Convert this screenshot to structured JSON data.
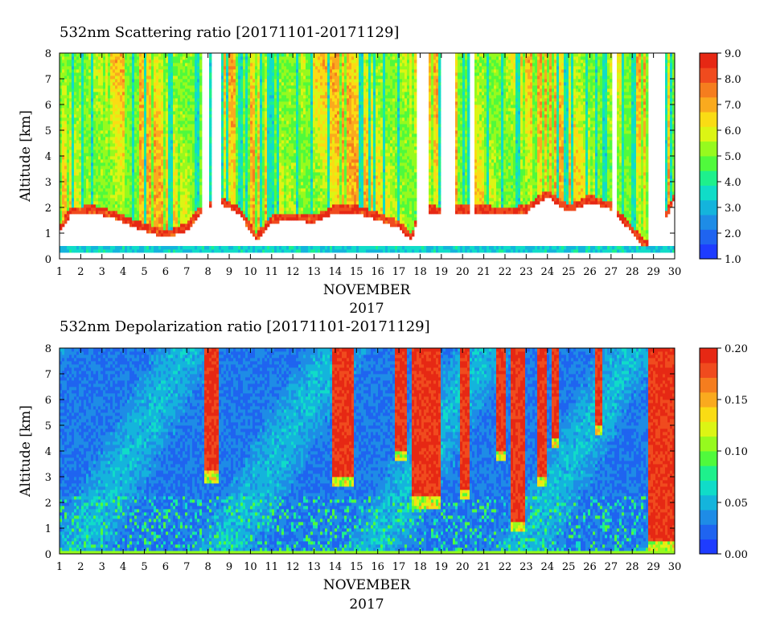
{
  "colors": {
    "palette": [
      "#1e3cff",
      "#1f64f0",
      "#1e8ce6",
      "#14b4dc",
      "#10dcc8",
      "#1ef08c",
      "#50fa3c",
      "#96fa1e",
      "#dcf514",
      "#fadc14",
      "#faaa1e",
      "#f57d1e",
      "#f04b1e",
      "#e62814"
    ],
    "empty": "#ffffff"
  },
  "chart_data": [
    {
      "type": "heatmap",
      "title": "532nm Scattering ratio [20171101-20171129]",
      "xlabel": "NOVEMBER",
      "xlabel2": "2017",
      "ylabel": "Altitude [km]",
      "xlim": [
        1,
        30
      ],
      "ylim": [
        0,
        8
      ],
      "x_ticks": [
        "1",
        "2",
        "3",
        "4",
        "5",
        "6",
        "7",
        "8",
        "9",
        "10",
        "11",
        "12",
        "13",
        "14",
        "15",
        "16",
        "17",
        "18",
        "19",
        "20",
        "21",
        "22",
        "23",
        "24",
        "25",
        "26",
        "27",
        "28",
        "29",
        "30"
      ],
      "y_ticks": [
        "0",
        "1",
        "2",
        "3",
        "4",
        "5",
        "6",
        "7",
        "8"
      ],
      "colorbar": {
        "min": 1.0,
        "max": 9.0,
        "ticks": [
          "1.0",
          "2.0",
          "3.0",
          "4.0",
          "5.0",
          "6.0",
          "7.0",
          "8.0",
          "9.0"
        ]
      },
      "cloud_base_km": [
        {
          "day": 1.0,
          "base": 1.0
        },
        {
          "day": 1.5,
          "base": 1.7
        },
        {
          "day": 2.5,
          "base": 1.8
        },
        {
          "day": 3.5,
          "base": 1.6
        },
        {
          "day": 4.3,
          "base": 1.3
        },
        {
          "day": 5.0,
          "base": 1.1
        },
        {
          "day": 6.0,
          "base": 0.8
        },
        {
          "day": 7.0,
          "base": 1.1
        },
        {
          "day": 7.7,
          "base": 1.8
        },
        {
          "day": 8.5,
          "base": 2.2
        },
        {
          "day": 9.5,
          "base": 1.7
        },
        {
          "day": 10.3,
          "base": 0.7
        },
        {
          "day": 11.0,
          "base": 1.4
        },
        {
          "day": 12.0,
          "base": 1.5
        },
        {
          "day": 13.0,
          "base": 1.4
        },
        {
          "day": 14.0,
          "base": 1.8
        },
        {
          "day": 15.0,
          "base": 1.8
        },
        {
          "day": 16.0,
          "base": 1.5
        },
        {
          "day": 17.0,
          "base": 1.2
        },
        {
          "day": 17.6,
          "base": 0.7
        },
        {
          "day": 18.0,
          "base": 1.9
        },
        {
          "day": 19.0,
          "base": 1.7
        },
        {
          "day": 20.0,
          "base": 1.8
        },
        {
          "day": 21.0,
          "base": 1.8
        },
        {
          "day": 22.0,
          "base": 1.7
        },
        {
          "day": 23.0,
          "base": 1.8
        },
        {
          "day": 24.0,
          "base": 2.4
        },
        {
          "day": 25.0,
          "base": 1.8
        },
        {
          "day": 26.0,
          "base": 2.2
        },
        {
          "day": 27.0,
          "base": 1.9
        },
        {
          "day": 28.0,
          "base": 1.0
        },
        {
          "day": 28.6,
          "base": 0.4
        },
        {
          "day": 29.2,
          "base": 0.9
        },
        {
          "day": 30.0,
          "base": 2.3
        }
      ],
      "clear_gaps_days": [
        [
          7.75,
          8.0
        ],
        [
          8.15,
          8.6
        ],
        [
          17.85,
          18.45
        ],
        [
          19.0,
          19.7
        ],
        [
          20.3,
          20.55
        ],
        [
          27.1,
          27.3
        ],
        [
          28.7,
          29.6
        ]
      ],
      "surface_layer_km": [
        0.25,
        0.45
      ]
    },
    {
      "type": "heatmap",
      "title": "532nm Depolarization ratio [20171101-20171129]",
      "xlabel": "NOVEMBER",
      "xlabel2": "2017",
      "ylabel": "Altitude [km]",
      "xlim": [
        1,
        30
      ],
      "ylim": [
        0,
        8
      ],
      "x_ticks": [
        "1",
        "2",
        "3",
        "4",
        "5",
        "6",
        "7",
        "8",
        "9",
        "10",
        "11",
        "12",
        "13",
        "14",
        "15",
        "16",
        "17",
        "18",
        "19",
        "20",
        "21",
        "22",
        "23",
        "24",
        "25",
        "26",
        "27",
        "28",
        "29",
        "30"
      ],
      "y_ticks": [
        "0",
        "1",
        "2",
        "3",
        "4",
        "5",
        "6",
        "7",
        "8"
      ],
      "colorbar": {
        "min": 0.0,
        "max": 0.2,
        "ticks": [
          "0.00",
          "0.05",
          "0.10",
          "0.15",
          "0.20"
        ]
      },
      "high_depol_bands_days": [
        {
          "from": 7.8,
          "to": 8.5,
          "base": 3.2
        },
        {
          "from": 13.8,
          "to": 14.9,
          "base": 3.0
        },
        {
          "from": 16.8,
          "to": 17.4,
          "base": 4.0
        },
        {
          "from": 17.6,
          "to": 19.0,
          "base": 2.2
        },
        {
          "from": 19.9,
          "to": 20.3,
          "base": 2.5
        },
        {
          "from": 21.6,
          "to": 22.0,
          "base": 4.0
        },
        {
          "from": 22.3,
          "to": 23.0,
          "base": 1.3
        },
        {
          "from": 23.5,
          "to": 24.0,
          "base": 3.0
        },
        {
          "from": 24.2,
          "to": 24.5,
          "base": 4.5
        },
        {
          "from": 26.2,
          "to": 26.6,
          "base": 5.0
        },
        {
          "from": 28.8,
          "to": 30.0,
          "base": 0.5
        }
      ]
    }
  ]
}
